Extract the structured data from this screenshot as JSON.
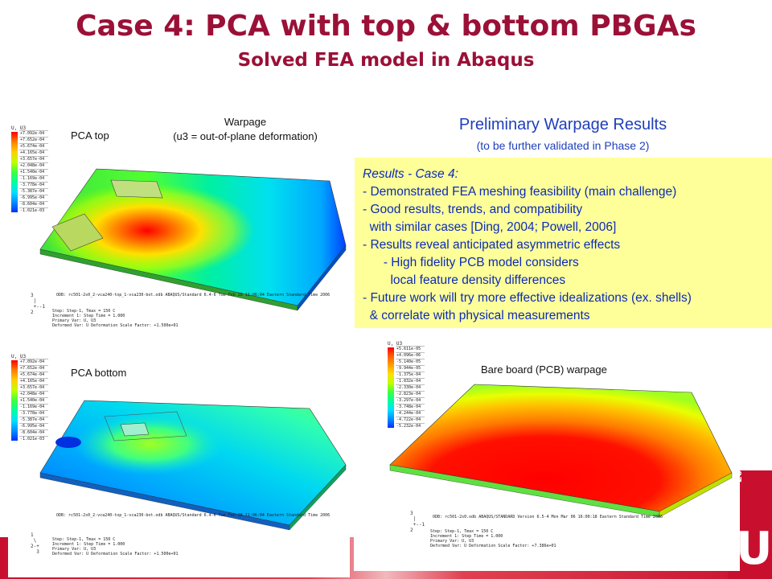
{
  "header": {
    "title": "Case 4: PCA with top & bottom PBGAs",
    "subtitle": "Solved FEA model in Abaqus"
  },
  "top_left": {
    "label": "PCA top",
    "caption_line1": "Warpage",
    "caption_line2": "(u3 = out-of-plane deformation)",
    "legend_title": "U, U3",
    "legend_values": [
      "+7.092e-04",
      "+7.652e-04",
      "+5.674e-04",
      "+4.165e-04",
      "+3.657e-04",
      "+2.048e-04",
      "+1.540e-04",
      "-1.169e-04",
      "-3.778e-04",
      "-5.387e-04",
      "-6.995e-04",
      "-8.604e-04",
      "-1.021e-03"
    ],
    "odb_line": "ODB: rc501-2s0_2-vca240-top_1-vca230-bot.odb    ABAQUS/Standard 6.4-6    Tue Feb 28 11:06:04 Eastern Standard Time 2006",
    "step_lines": [
      "Step: Step-1, Tmax = 150 C",
      "Increment     1: Step Time =     1.000",
      "Primary Var: U, U3",
      "Deformed Var: U   Deformation Scale Factor: +1.500e+01"
    ]
  },
  "bottom_left": {
    "label": "PCA bottom",
    "legend_title": "U, U3",
    "legend_values": [
      "+7.092e-04",
      "+7.652e-04",
      "+5.674e-04",
      "+4.165e-04",
      "+3.657e-04",
      "+2.048e-04",
      "+1.540e-04",
      "-1.169e-04",
      "-3.778e-04",
      "-5.387e-04",
      "-6.995e-04",
      "-8.604e-04",
      "-1.021e-03"
    ],
    "odb_line": "ODB: rc501-2s0_2-vca240-top_1-vca230-bot.odb    ABAQUS/Standard 6.4-6    Tue Feb 28 11:06:04 Eastern Standard Time 2006",
    "step_lines": [
      "Step: Step-1, Tmax = 150 C",
      "Increment     1: Step Time =     1.000",
      "Primary Var: U, U3",
      "Deformed Var: U   Deformation Scale Factor: +1.500e+01"
    ]
  },
  "bottom_right": {
    "label": "Bare board (PCB) warpage",
    "legend_title": "U, U3",
    "legend_values": [
      "+5.611e-05",
      "+4.096e-06",
      "-5.140e-05",
      "-9.944e-05",
      "-1.375e-04",
      "-1.832e-04",
      "-2.330e-04",
      "-2.823e-04",
      "-3.297e-04",
      "-3.748e-04",
      "-4.244e-04",
      "-4.722e-04",
      "-5.232e-04"
    ],
    "odb_line": "ODB: rc501-2s0.odb    ABAQUS/STANDARD Version 6.5-4    Mon Mar 06 16:00:18 Eastern Standard Time 2006",
    "step_lines": [
      "Step: Step-1, Tmax = 150 C",
      "Increment     1: Step Time =     1.000",
      "Primary Var: U, U3",
      "Deformed Var: U   Deformation Scale Factor: +7.386e+01"
    ]
  },
  "results": {
    "heading": "Preliminary Warpage Results",
    "subheading": "(to be further validated in Phase 2)",
    "lines": [
      "Results - Case 4:",
      "- Demonstrated FEA meshing feasibility (main challenge)",
      "- Good results, trends, and compatibility",
      "  with similar cases [Ding, 2004; Powell, 2006]",
      "- Results reveal anticipated asymmetric effects",
      "      - High fidelity PCB model considers",
      "        local feature density differences",
      "- Future work will try more effective idealizations (ex. shells)",
      "  & correlate with physical measurements"
    ]
  },
  "colors": {
    "title": "#9b1037",
    "results_text": "#1f3fb8",
    "results_box": "#ffff99",
    "brand_red": "#c8102e"
  }
}
